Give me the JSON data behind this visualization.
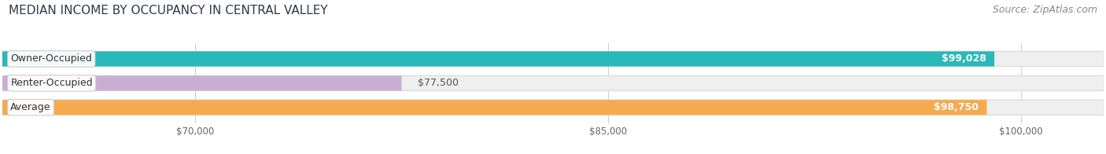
{
  "title": "MEDIAN INCOME BY OCCUPANCY IN CENTRAL VALLEY",
  "source": "Source: ZipAtlas.com",
  "categories": [
    "Owner-Occupied",
    "Renter-Occupied",
    "Average"
  ],
  "values": [
    99028,
    77500,
    98750
  ],
  "bar_colors": [
    "#2ab8b8",
    "#c9aed4",
    "#f5aa50"
  ],
  "label_values": [
    "$99,028",
    "$77,500",
    "$98,750"
  ],
  "xmin": 63000,
  "xmax": 103000,
  "xticks": [
    70000,
    85000,
    100000
  ],
  "xtick_labels": [
    "$70,000",
    "$85,000",
    "$100,000"
  ],
  "background_color": "#ffffff",
  "bar_bg_color": "#efefef",
  "bar_bg_edge": "#dddddd",
  "title_fontsize": 11,
  "source_fontsize": 9,
  "label_fontsize": 9,
  "category_fontsize": 9
}
